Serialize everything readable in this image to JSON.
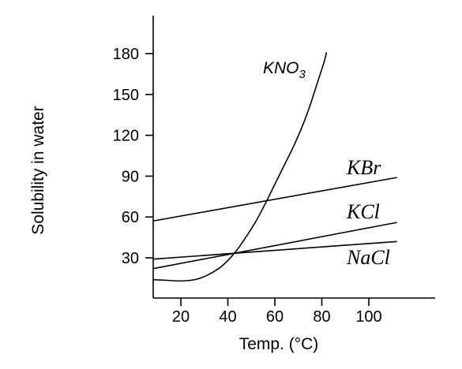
{
  "chart_data": {
    "type": "line",
    "title": "",
    "xlabel": "Temp. (°C)",
    "ylabel": "Solubility in water",
    "xlim": [
      8,
      128
    ],
    "ylim": [
      -2,
      200
    ],
    "xticks": [
      20,
      40,
      60,
      80,
      100
    ],
    "yticks": [
      30,
      60,
      90,
      120,
      150,
      180
    ],
    "grid": false,
    "legend": "none",
    "series": [
      {
        "name": "KNO3",
        "name_base": "KNO",
        "name_sub": "3",
        "x": [
          8,
          14,
          20,
          26,
          31,
          36,
          40,
          44,
          48,
          52,
          56,
          60,
          64,
          68,
          72,
          75,
          78,
          81,
          82
        ],
        "y": [
          14,
          13.5,
          13,
          14,
          17,
          22,
          28,
          36,
          46,
          57,
          70,
          84,
          98,
          112,
          128,
          142,
          158,
          174,
          181
        ]
      },
      {
        "name": "KBr",
        "x": [
          8,
          112
        ],
        "y": [
          57,
          89
        ]
      },
      {
        "name": "KCl",
        "x": [
          8,
          112
        ],
        "y": [
          22,
          56
        ]
      },
      {
        "name": "NaCl",
        "x": [
          8,
          112
        ],
        "y": [
          29,
          42
        ]
      }
    ]
  }
}
